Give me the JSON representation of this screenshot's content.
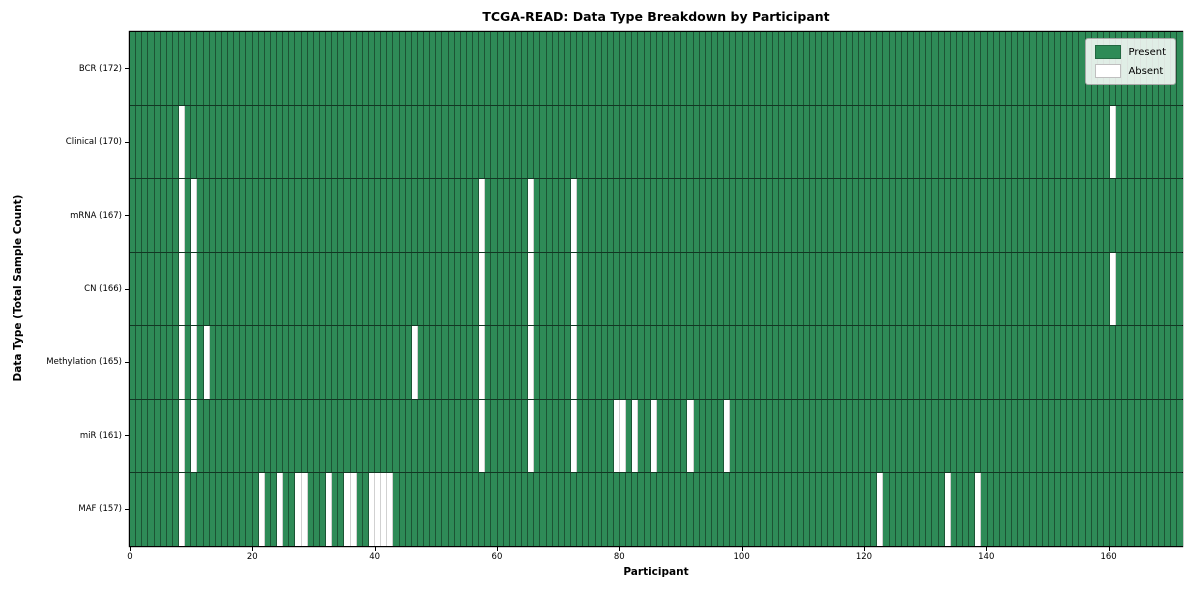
{
  "title": "TCGA-READ: Data Type Breakdown by Participant",
  "colors": {
    "present": "#2e8b57",
    "absent": "#ffffff",
    "grid_line": "rgba(10,30,18,0.5)",
    "row_separator": "rgba(0,0,0,0.6)"
  },
  "chart_data": {
    "type": "heatmap",
    "title": "TCGA-READ: Data Type Breakdown by Participant",
    "xlabel": "Participant",
    "ylabel": "Data Type (Total Sample Count)",
    "x_ticks": [
      0,
      20,
      40,
      60,
      80,
      100,
      120,
      140,
      160
    ],
    "x_range": [
      0,
      172
    ],
    "total_participants": 172,
    "grid": true,
    "legend_position": "upper right",
    "legend": [
      {
        "label": "Present",
        "color": "#2e8b57"
      },
      {
        "label": "Absent",
        "color": "#ffffff"
      }
    ],
    "rows": [
      {
        "label": "BCR (172)",
        "data_type": "BCR",
        "total_samples": 172,
        "absent_participants": []
      },
      {
        "label": "Clinical (170)",
        "data_type": "Clinical",
        "total_samples": 170,
        "absent_participants": [
          8,
          160
        ]
      },
      {
        "label": "mRNA (167)",
        "data_type": "mRNA",
        "total_samples": 167,
        "absent_participants": [
          8,
          10,
          57,
          65,
          72
        ]
      },
      {
        "label": "CN (166)",
        "data_type": "CN",
        "total_samples": 166,
        "absent_participants": [
          8,
          10,
          57,
          65,
          72,
          160
        ]
      },
      {
        "label": "Methylation (165)",
        "data_type": "Methylation",
        "total_samples": 165,
        "absent_participants": [
          8,
          10,
          12,
          46,
          57,
          65,
          72
        ]
      },
      {
        "label": "miR (161)",
        "data_type": "miR",
        "total_samples": 161,
        "absent_participants": [
          8,
          10,
          57,
          65,
          72,
          79,
          80,
          82,
          85,
          91,
          97
        ]
      },
      {
        "label": "MAF (157)",
        "data_type": "MAF",
        "total_samples": 157,
        "absent_participants": [
          8,
          21,
          24,
          27,
          28,
          32,
          35,
          36,
          39,
          40,
          41,
          42,
          122,
          133,
          138
        ]
      }
    ]
  }
}
